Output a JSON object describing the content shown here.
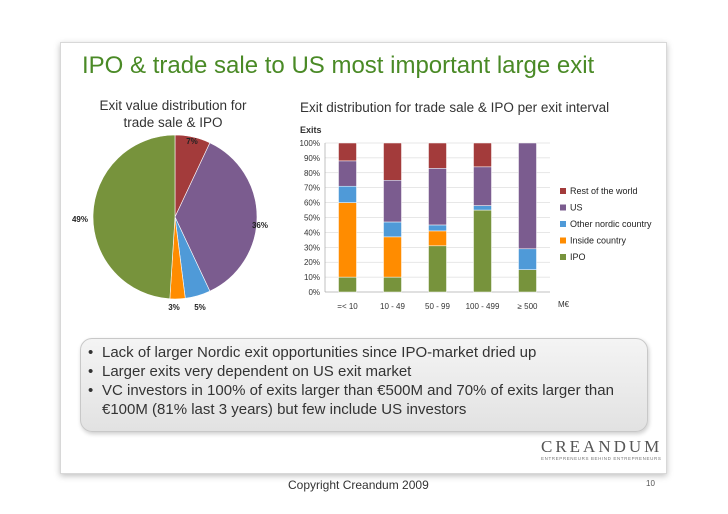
{
  "slide": {
    "title": "IPO & trade sale to US most important large exit",
    "copyright": "Copyright Creandum 2009",
    "page_number": "10",
    "logo": {
      "name": "CREANDUM",
      "tagline": "ENTREPRENEURS BEHIND ENTREPRENEURS"
    },
    "bullets": [
      "Lack of larger Nordic exit opportunities since IPO-market dried up",
      "Larger exits very dependent on US exit market",
      "VC investors in 100% of exits larger than €500M and 70% of exits larger than €100M (81% last 3 years) but few include US investors"
    ]
  },
  "colors": {
    "ipo": "#77933c",
    "inside_country": "#ff8c00",
    "other_nordic": "#4f9ad8",
    "us": "#7b5c8f",
    "rest_of_world": "#a33b3b"
  },
  "chart_data": [
    {
      "type": "pie",
      "title": "Exit value distribution for trade sale & IPO",
      "slices": [
        {
          "name": "Rest of the world",
          "value": 7,
          "label": "7%",
          "color_key": "rest_of_world"
        },
        {
          "name": "US",
          "value": 36,
          "label": "36%",
          "color_key": "us"
        },
        {
          "name": "Other nordic country",
          "value": 5,
          "label": "5%",
          "color_key": "other_nordic"
        },
        {
          "name": "Inside country",
          "value": 3,
          "label": "3%",
          "color_key": "inside_country"
        },
        {
          "name": "IPO",
          "value": 49,
          "label": "49%",
          "color_key": "ipo"
        }
      ]
    },
    {
      "type": "bar",
      "stacked": true,
      "title": "Exit distribution for trade sale & IPO per exit interval",
      "ylabel": "Exits",
      "xlabel": "M€",
      "ylim": [
        0,
        100
      ],
      "yticks": [
        "0%",
        "10%",
        "20%",
        "30%",
        "40%",
        "50%",
        "60%",
        "70%",
        "80%",
        "90%",
        "100%"
      ],
      "categories": [
        "=< 10",
        "10 - 49",
        "50 - 99",
        "100 - 499",
        "≥ 500"
      ],
      "series": [
        {
          "name": "IPO",
          "color_key": "ipo",
          "values": [
            10,
            10,
            31,
            55,
            15
          ]
        },
        {
          "name": "Inside country",
          "color_key": "inside_country",
          "values": [
            50,
            27,
            10,
            0,
            0
          ]
        },
        {
          "name": "Other nordic country",
          "color_key": "other_nordic",
          "values": [
            11,
            10,
            4,
            3,
            14
          ]
        },
        {
          "name": "US",
          "color_key": "us",
          "values": [
            17,
            28,
            38,
            26,
            71
          ]
        },
        {
          "name": "Rest of the world",
          "color_key": "rest_of_world",
          "values": [
            12,
            25,
            17,
            16,
            0
          ]
        }
      ],
      "legend": [
        "Rest of the world",
        "US",
        "Other nordic country",
        "Inside country",
        "IPO"
      ],
      "legend_position": "right"
    }
  ]
}
